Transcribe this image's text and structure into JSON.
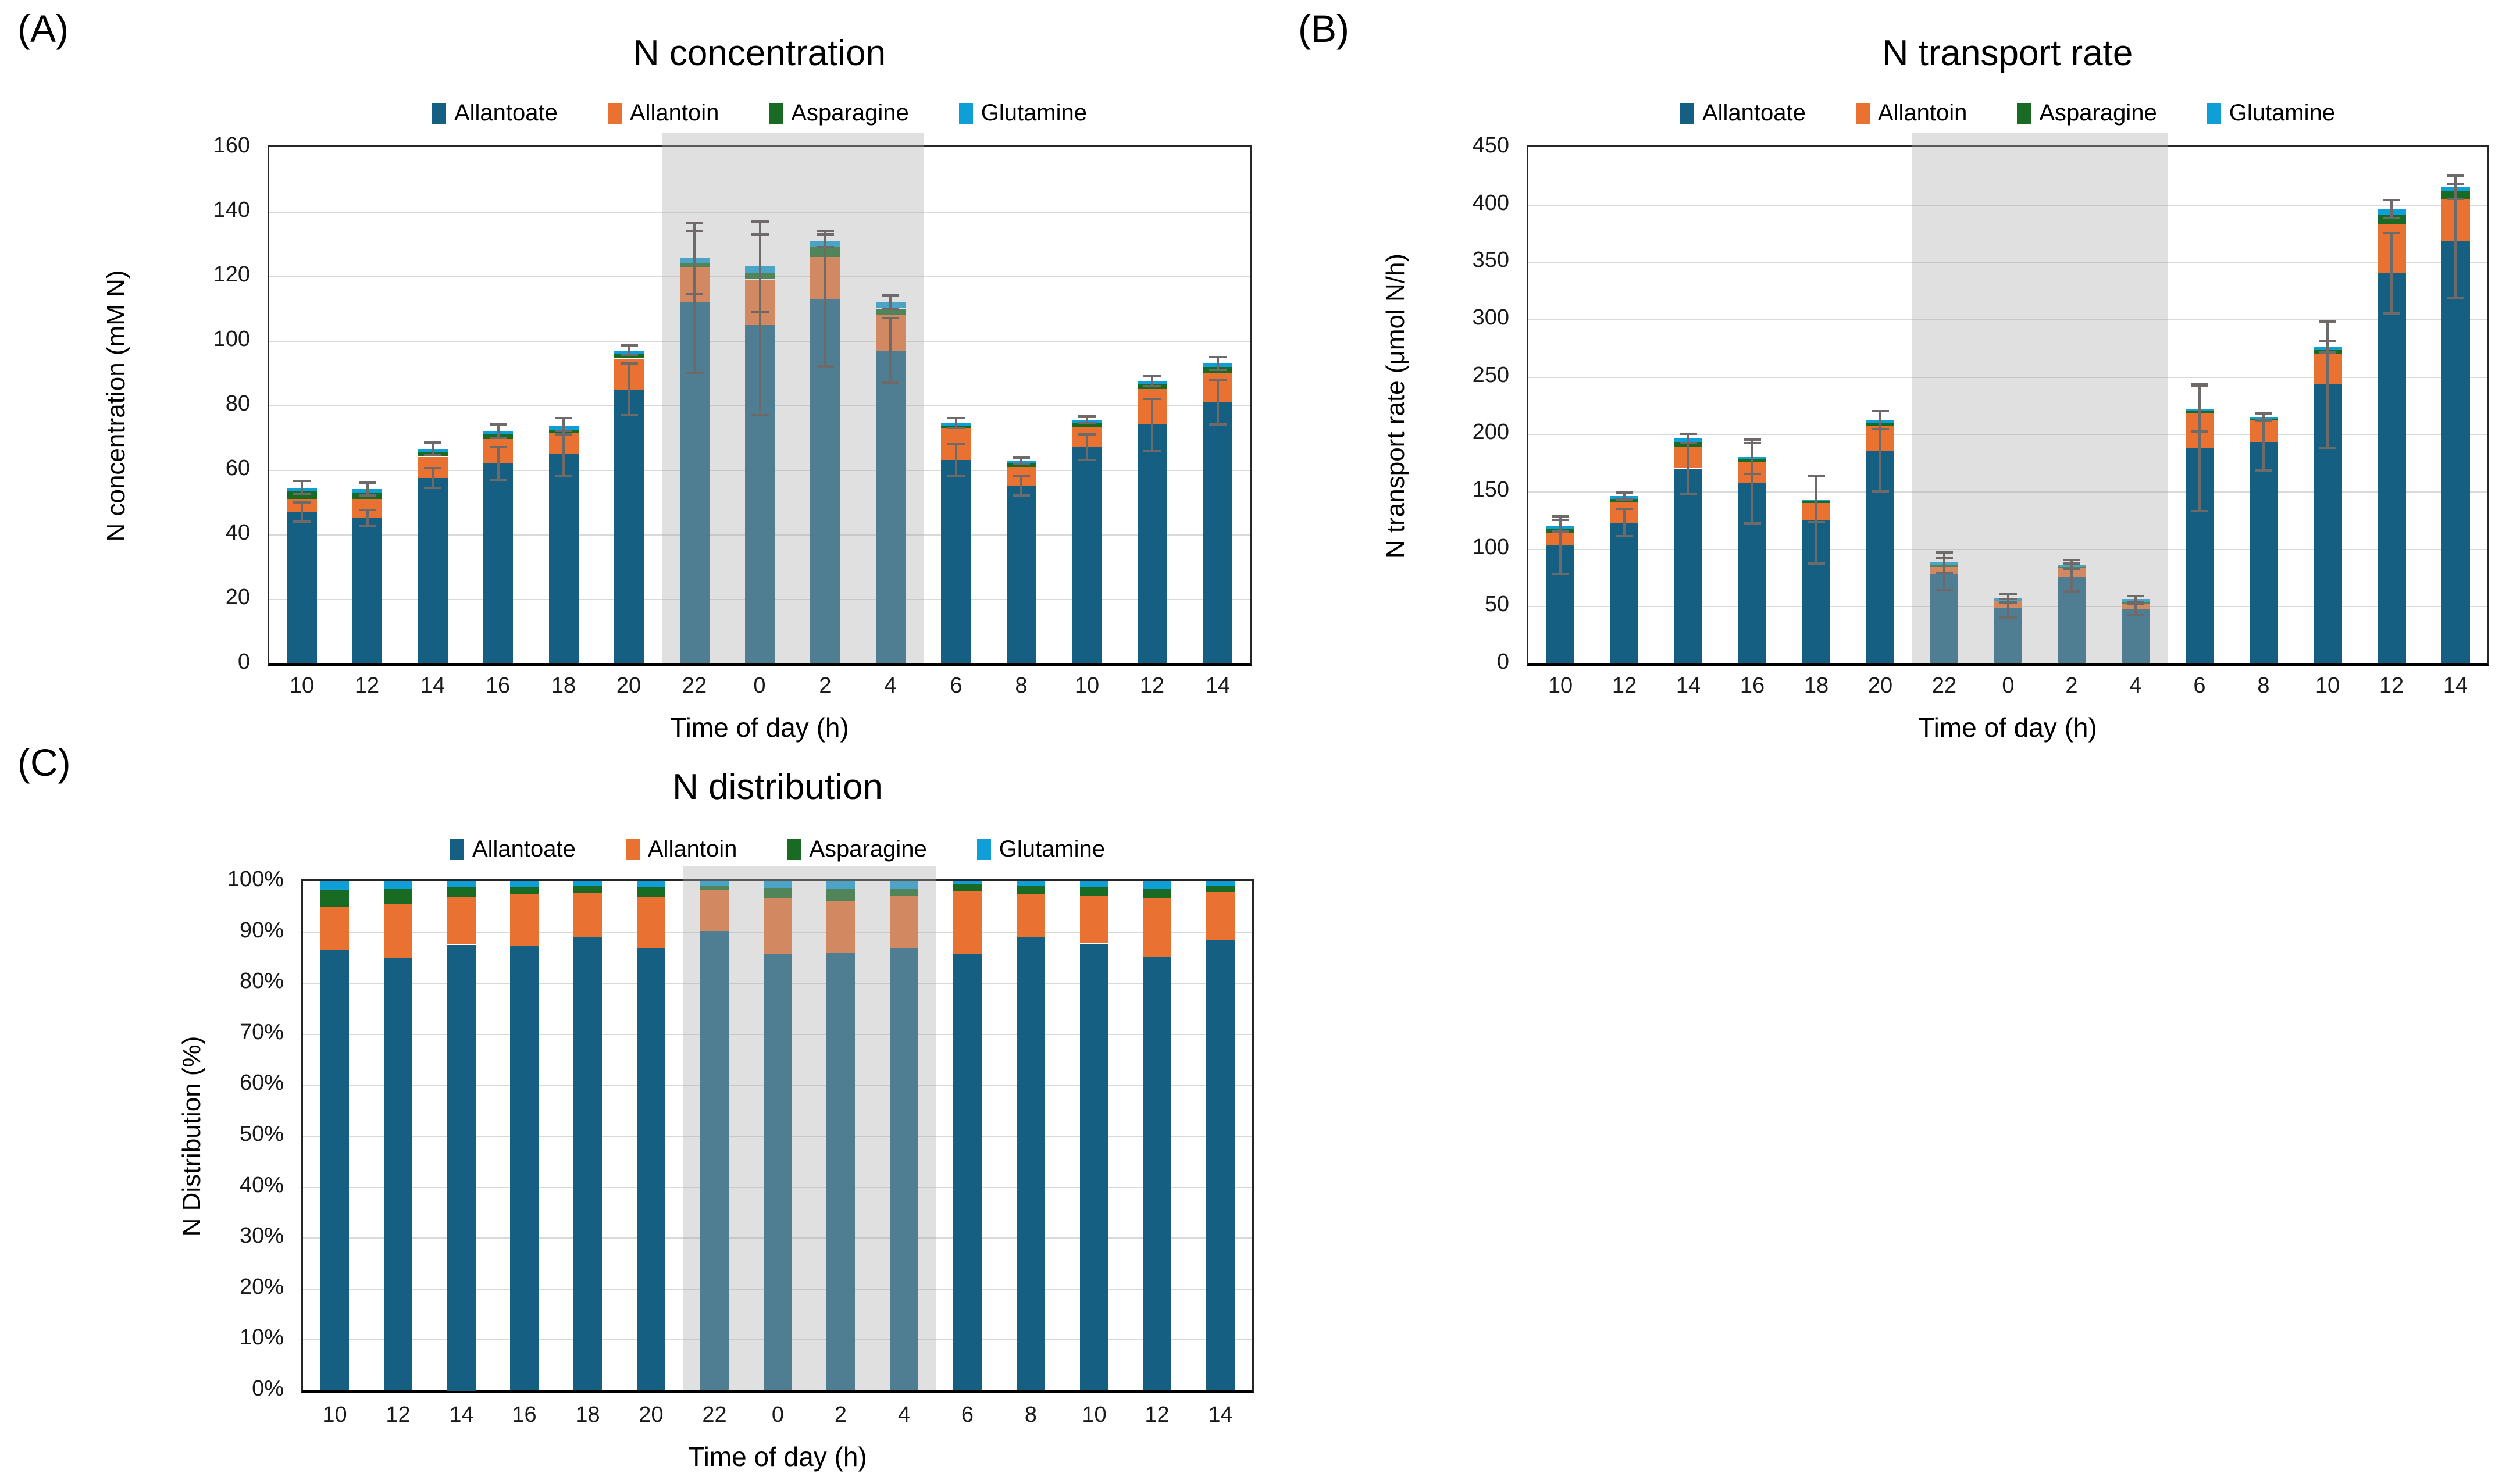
{
  "figure": {
    "background": "#ffffff",
    "panel_labels": [
      "(A)",
      "(B)",
      "(C)"
    ]
  },
  "legend_items": [
    {
      "label": "Allantoate",
      "color": "#156082"
    },
    {
      "label": "Allantoin",
      "color": "#E97132"
    },
    {
      "label": "Asparagine",
      "color": "#196B24"
    },
    {
      "label": "Glutamine",
      "color": "#0F9ED5"
    }
  ],
  "colors": {
    "night_shade": "#e3e3e3",
    "gridline": "#d9d9d9",
    "error_bar": "#6e6a6a",
    "axis": "#000000"
  },
  "chart_data": [
    {
      "type": "bar",
      "stacked": true,
      "panel_label": "(A)",
      "title": "N concentration",
      "ylabel": "N concentration (mM N)",
      "xlabel": "Time of day (h)",
      "ylim": [
        0,
        160
      ],
      "ystep": 20,
      "y_tick_suffix": "",
      "grid": true,
      "legend_position": "top",
      "categories": [
        "10",
        "12",
        "14",
        "16",
        "18",
        "20",
        "22",
        "0",
        "2",
        "4",
        "6",
        "8",
        "10",
        "12",
        "14"
      ],
      "night_band": {
        "start_index": 6,
        "end_index": 9
      },
      "series": [
        {
          "name": "Allantoate",
          "values": [
            47,
            45,
            57.5,
            62,
            65,
            85,
            112,
            105,
            113,
            97,
            63,
            55,
            67,
            74,
            81
          ]
        },
        {
          "name": "Allantoin",
          "values": [
            4,
            6,
            6.5,
            7.5,
            6.5,
            9.5,
            11,
            14,
            13,
            11,
            10,
            6,
            6.5,
            11,
            9
          ]
        },
        {
          "name": "Asparagine",
          "values": [
            2.5,
            2,
            1.5,
            1.5,
            1,
            1.5,
            1,
            2,
            3,
            2,
            0.7,
            1,
            1,
            1.5,
            2
          ]
        },
        {
          "name": "Glutamine",
          "values": [
            1,
            1,
            1,
            1,
            1,
            1,
            1.5,
            2,
            2,
            2,
            0.8,
            0.8,
            1,
            1,
            1
          ]
        }
      ],
      "error_allantoate_plusminus": [
        3,
        2.5,
        3,
        5,
        7,
        8,
        22,
        28,
        21,
        10,
        5,
        3,
        4,
        8,
        7
      ],
      "error_stacktop_plusminus": [
        2,
        2,
        2,
        2,
        2.5,
        1.5,
        11,
        14,
        2,
        2,
        1.5,
        1,
        1,
        1.5,
        2
      ]
    },
    {
      "type": "bar",
      "stacked": true,
      "panel_label": "(B)",
      "title": "N transport rate",
      "ylabel": "N transport rate (μmol N/h)",
      "xlabel": "Time of day (h)",
      "ylim": [
        0,
        450
      ],
      "ystep": 50,
      "y_tick_suffix": "",
      "grid": true,
      "legend_position": "top",
      "categories": [
        "10",
        "12",
        "14",
        "16",
        "18",
        "20",
        "22",
        "0",
        "2",
        "4",
        "6",
        "8",
        "10",
        "12",
        "14"
      ],
      "night_band": {
        "start_index": 6,
        "end_index": 9
      },
      "series": [
        {
          "name": "Allantoate",
          "values": [
            103,
            123,
            170,
            157,
            125,
            185,
            78,
            48,
            75,
            47,
            188,
            193,
            243,
            340,
            368
          ]
        },
        {
          "name": "Allantoin",
          "values": [
            11,
            18,
            19,
            19,
            15,
            22,
            6,
            6,
            8,
            5,
            30,
            19,
            27,
            43,
            37
          ]
        },
        {
          "name": "Asparagine",
          "values": [
            3,
            2.5,
            4,
            2,
            1.5,
            3,
            1.5,
            1,
            1,
            1.5,
            2,
            1.5,
            3,
            8,
            7
          ]
        },
        {
          "name": "Glutamine",
          "values": [
            3,
            2.5,
            3,
            2,
            1.5,
            2,
            2.5,
            2,
            2,
            2.5,
            2,
            1.5,
            3,
            5,
            3
          ]
        }
      ],
      "error_allantoate_plusminus": [
        25,
        12,
        22,
        35,
        38,
        35,
        14,
        8,
        12,
        5,
        55,
        25,
        55,
        35,
        50
      ],
      "error_stacktop_plusminus": [
        5,
        3,
        4,
        15,
        20,
        8,
        9,
        4,
        4,
        3,
        20,
        3,
        5,
        8,
        10
      ]
    },
    {
      "type": "bar",
      "stacked": true,
      "panel_label": "(C)",
      "title": "N distribution",
      "ylabel": "N Distribution (%)",
      "xlabel": "Time of day (h)",
      "ylim": [
        0,
        100
      ],
      "ystep": 10,
      "y_tick_suffix": "%",
      "grid": true,
      "legend_position": "top",
      "categories": [
        "10",
        "12",
        "14",
        "16",
        "18",
        "20",
        "22",
        "0",
        "2",
        "4",
        "6",
        "8",
        "10",
        "12",
        "14"
      ],
      "night_band": {
        "start_index": 6,
        "end_index": 9
      },
      "series": [
        {
          "name": "Allantoate",
          "values": [
            86.5,
            84.8,
            87.5,
            87.3,
            89.0,
            86.8,
            90.2,
            85.8,
            85.8,
            86.8,
            85.7,
            89.0,
            87.7,
            85.1,
            88.3
          ]
        },
        {
          "name": "Allantoin",
          "values": [
            8.5,
            10.7,
            9.5,
            10.2,
            8.7,
            10.2,
            8.1,
            10.8,
            10.2,
            10.2,
            12.4,
            8.5,
            9.3,
            11.5,
            9.6
          ]
        },
        {
          "name": "Asparagine",
          "values": [
            3.2,
            3.0,
            1.8,
            1.3,
            1.3,
            1.8,
            0.7,
            2.0,
            2.4,
            1.5,
            1.2,
            1.5,
            1.7,
            1.9,
            1.1
          ]
        },
        {
          "name": "Glutamine",
          "values": [
            1.8,
            1.5,
            1.2,
            1.2,
            1.0,
            1.2,
            1.0,
            1.4,
            1.6,
            1.5,
            0.7,
            1.0,
            1.3,
            1.5,
            1.0
          ]
        }
      ],
      "error_allantoate_plusminus": [],
      "error_stacktop_plusminus": []
    }
  ]
}
